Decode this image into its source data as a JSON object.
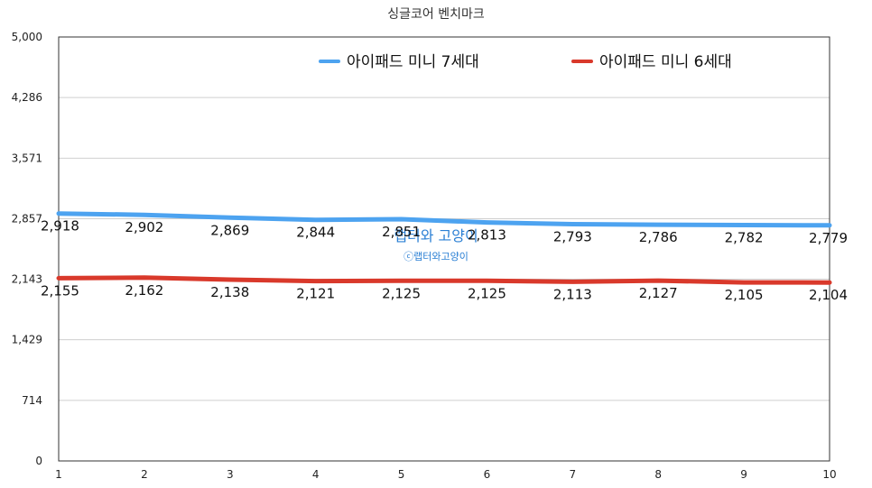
{
  "chart_data": {
    "type": "line",
    "title": "싱글코어 벤치마크",
    "xlabel": "",
    "ylabel": "",
    "x": [
      1,
      2,
      3,
      4,
      5,
      6,
      7,
      8,
      9,
      10
    ],
    "x_tick_labels": [
      "1",
      "2",
      "3",
      "4",
      "5",
      "6",
      "7",
      "8",
      "9",
      "10"
    ],
    "ylim": [
      0,
      5000
    ],
    "y_tick_labels": [
      "0",
      "714",
      "1,429",
      "2,143",
      "2,857",
      "3,571",
      "4,286",
      "5,000"
    ],
    "y_tick_values": [
      0,
      714,
      1429,
      2143,
      2857,
      3571,
      4286,
      5000
    ],
    "grid": true,
    "legend_placement": "top",
    "series": [
      {
        "name": "아이패드 미니 7세대",
        "color": "#4da3f0",
        "values": [
          2918,
          2902,
          2869,
          2844,
          2851,
          2813,
          2793,
          2786,
          2782,
          2779
        ],
        "labels": [
          "2,918",
          "2,902",
          "2,869",
          "2,844",
          "2,851",
          "2,813",
          "2,793",
          "2,786",
          "2,782",
          "2,779"
        ]
      },
      {
        "name": "아이패드 미니 6세대",
        "color": "#d9392b",
        "values": [
          2155,
          2162,
          2138,
          2121,
          2125,
          2125,
          2113,
          2127,
          2105,
          2104
        ],
        "labels": [
          "2,155",
          "2,162",
          "2,138",
          "2,121",
          "2,125",
          "2,125",
          "2,113",
          "2,127",
          "2,105",
          "2,104"
        ]
      }
    ],
    "watermark": {
      "main": "랩터와 고양이",
      "sub": "ⓒ랩터와고양이",
      "color": "#2a7fd4"
    }
  }
}
